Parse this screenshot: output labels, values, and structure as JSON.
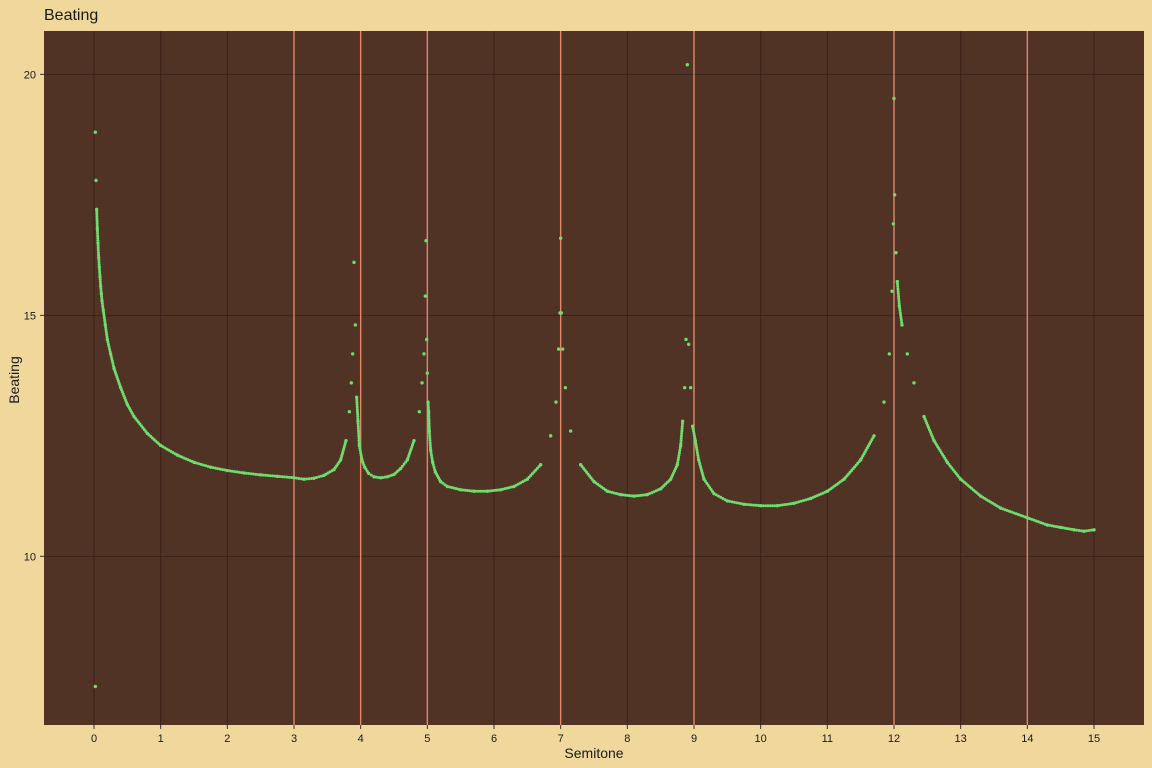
{
  "chart_data": {
    "type": "scatter",
    "title": "Beating",
    "xlabel": "Semitone",
    "ylabel": "Beating",
    "xlim": [
      -0.75,
      15.75
    ],
    "ylim": [
      6.5,
      20.9
    ],
    "x_ticks": [
      0,
      1,
      2,
      3,
      4,
      5,
      6,
      7,
      8,
      9,
      10,
      11,
      12,
      13,
      14,
      15
    ],
    "y_ticks": [
      10,
      15,
      20
    ],
    "grid": true,
    "reference_lines_x": [
      3,
      4,
      5,
      7,
      9,
      12,
      14
    ],
    "series": [
      {
        "points_x": [
          0.02,
          0.03,
          0.04,
          0.05,
          0.06,
          0.07,
          0.08,
          0.09,
          0.1,
          0.11,
          0.12,
          0.14,
          0.17,
          0.2,
          0.25,
          0.3,
          0.4,
          0.5,
          0.6,
          0.8,
          1.0,
          1.25,
          1.5,
          1.75,
          2.0,
          2.25,
          2.5,
          2.75,
          3.0,
          3.15,
          3.3,
          3.45,
          3.6,
          3.7,
          3.78,
          3.83,
          3.86,
          3.88,
          3.9,
          3.92,
          3.94,
          3.96,
          3.98,
          4.02,
          4.06,
          4.12,
          4.2,
          4.3,
          4.4,
          4.5,
          4.6,
          4.7,
          4.8,
          4.88,
          4.92,
          4.95,
          4.97,
          4.98,
          4.99,
          5.0,
          5.01,
          5.02,
          5.03,
          5.05,
          5.08,
          5.12,
          5.2,
          5.3,
          5.5,
          5.7,
          5.9,
          6.1,
          6.3,
          6.5,
          6.7,
          6.85,
          6.93,
          6.97,
          6.99,
          7.0,
          7.01,
          7.03,
          7.07,
          7.15,
          7.3,
          7.5,
          7.7,
          7.9,
          8.1,
          8.3,
          8.5,
          8.65,
          8.75,
          8.8,
          8.83,
          8.86,
          8.88,
          8.9,
          8.92,
          8.95,
          8.98,
          9.02,
          9.07,
          9.15,
          9.3,
          9.5,
          9.75,
          10.0,
          10.25,
          10.5,
          10.75,
          11.0,
          11.25,
          11.5,
          11.7,
          11.85,
          11.93,
          11.97,
          11.99,
          12.0,
          12.01,
          12.03,
          12.05,
          12.08,
          12.12,
          12.2,
          12.3,
          12.45,
          12.6,
          12.8,
          13.0,
          13.3,
          13.6,
          14.0,
          14.3,
          14.5,
          14.7,
          14.85,
          15.0
        ],
        "points_y": [
          18.8,
          17.8,
          17.2,
          16.8,
          16.5,
          16.2,
          16.0,
          15.8,
          15.6,
          15.45,
          15.3,
          15.1,
          14.8,
          14.5,
          14.2,
          13.9,
          13.5,
          13.15,
          12.9,
          12.55,
          12.3,
          12.1,
          11.95,
          11.85,
          11.78,
          11.73,
          11.69,
          11.66,
          11.63,
          11.6,
          11.62,
          11.68,
          11.8,
          12.0,
          12.4,
          13.0,
          13.6,
          14.2,
          16.1,
          14.8,
          13.3,
          12.8,
          12.3,
          12.0,
          11.85,
          11.72,
          11.65,
          11.63,
          11.65,
          11.7,
          11.82,
          12.0,
          12.4,
          13.0,
          13.6,
          14.2,
          15.4,
          16.55,
          14.5,
          13.8,
          13.2,
          13.0,
          12.6,
          12.2,
          11.95,
          11.75,
          11.55,
          11.45,
          11.38,
          11.35,
          11.35,
          11.38,
          11.45,
          11.6,
          11.9,
          12.5,
          13.2,
          14.3,
          15.05,
          16.6,
          15.05,
          14.3,
          13.5,
          12.6,
          11.9,
          11.55,
          11.35,
          11.28,
          11.25,
          11.28,
          11.4,
          11.6,
          11.9,
          12.3,
          12.8,
          13.5,
          14.5,
          20.2,
          14.4,
          13.5,
          12.7,
          12.4,
          12.0,
          11.6,
          11.3,
          11.15,
          11.08,
          11.05,
          11.05,
          11.1,
          11.2,
          11.35,
          11.6,
          12.0,
          12.5,
          13.2,
          14.2,
          15.5,
          16.9,
          19.5,
          17.5,
          16.3,
          15.7,
          15.2,
          14.8,
          14.2,
          13.6,
          12.9,
          12.4,
          11.95,
          11.6,
          11.25,
          11.0,
          10.8,
          10.65,
          10.6,
          10.55,
          10.52,
          10.55
        ],
        "outliers_x": [
          0.02
        ],
        "outliers_y": [
          7.3
        ]
      }
    ],
    "colors": {
      "background": "#f0d89c",
      "panel": "#513326",
      "grid": "#3a2219",
      "reference_line": "#e0896a",
      "points": "#6fdc6f"
    }
  }
}
